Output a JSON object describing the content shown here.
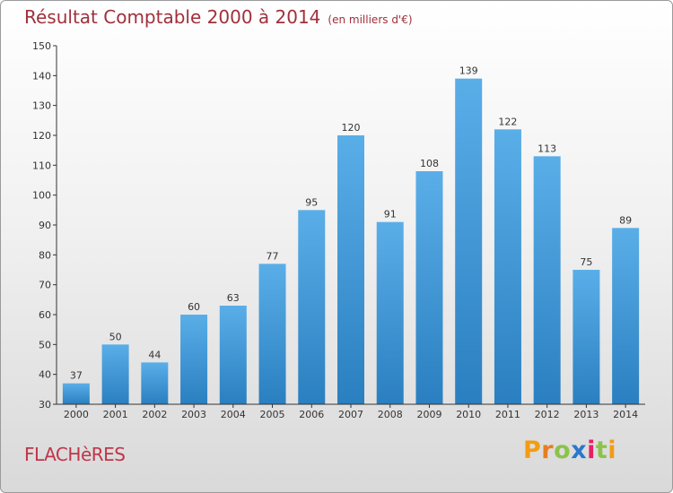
{
  "header": {
    "title": "Résultat Comptable 2000 à 2014",
    "subtitle": "(en milliers d'€)"
  },
  "footer": {
    "commune": "FLACHèRES",
    "logo": {
      "text": "Proxiti",
      "letters": [
        "P",
        "r",
        "o",
        "x",
        "i",
        "t",
        "i"
      ],
      "colors": [
        "#f39c12",
        "#e67e22",
        "#8bc34a",
        "#2a79c9",
        "#e91e63",
        "#8bc34a",
        "#f39c12"
      ]
    }
  },
  "colors": {
    "title": "#a0303c",
    "commune": "#c0354a",
    "bar_top": "#5aaee8",
    "bar_bottom": "#2a7fc0",
    "axis": "#333333"
  },
  "chart_data": {
    "type": "bar",
    "title": "Résultat Comptable 2000 à 2014",
    "subtitle": "(en milliers d'€)",
    "categories": [
      "2000",
      "2001",
      "2002",
      "2003",
      "2004",
      "2005",
      "2006",
      "2007",
      "2008",
      "2009",
      "2010",
      "2011",
      "2012",
      "2013",
      "2014"
    ],
    "values": [
      37,
      50,
      44,
      60,
      63,
      77,
      95,
      120,
      91,
      108,
      139,
      122,
      113,
      75,
      89
    ],
    "ylim": [
      30,
      150
    ],
    "yticks": [
      30,
      40,
      50,
      60,
      70,
      80,
      90,
      100,
      110,
      120,
      130,
      140,
      150
    ],
    "grid": false,
    "legend": "none",
    "data_labels": true
  }
}
